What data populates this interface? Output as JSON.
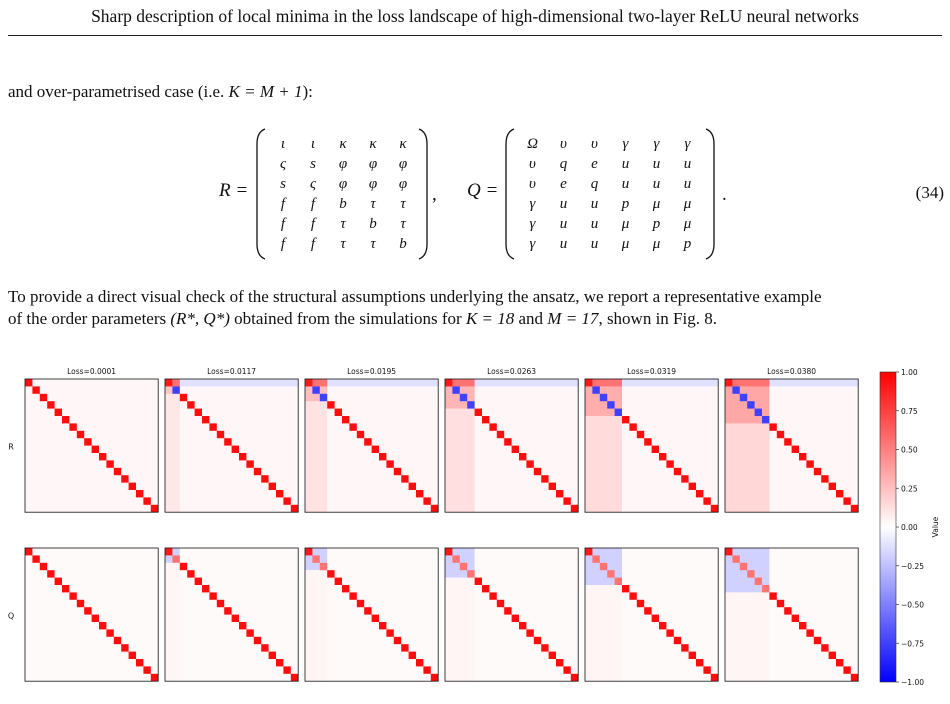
{
  "header": {
    "title": "Sharp description of local minima in the loss landscape of high-dimensional two-layer ReLU neural networks"
  },
  "para1": {
    "prefix": "and over-parametrised case (i.e. ",
    "math": "K = M + 1",
    "suffix": "):"
  },
  "equation": {
    "number": "(34)",
    "R_label": "R =",
    "Q_label": "Q =",
    "sep": ",",
    "end": ".",
    "R": [
      [
        "ι",
        "ι",
        "κ",
        "κ",
        "κ"
      ],
      [
        "ς",
        "s",
        "φ",
        "φ",
        "φ"
      ],
      [
        "s",
        "ς",
        "φ",
        "φ",
        "φ"
      ],
      [
        "f",
        "f",
        "b",
        "τ",
        "τ"
      ],
      [
        "f",
        "f",
        "τ",
        "b",
        "τ"
      ],
      [
        "f",
        "f",
        "τ",
        "τ",
        "b"
      ]
    ],
    "Q": [
      [
        "Ω",
        "υ",
        "υ",
        "γ",
        "γ",
        "γ"
      ],
      [
        "υ",
        "q",
        "e",
        "u",
        "u",
        "u"
      ],
      [
        "υ",
        "e",
        "q",
        "u",
        "u",
        "u"
      ],
      [
        "γ",
        "u",
        "u",
        "p",
        "μ",
        "μ"
      ],
      [
        "γ",
        "u",
        "u",
        "μ",
        "p",
        "μ"
      ],
      [
        "γ",
        "u",
        "u",
        "μ",
        "μ",
        "p"
      ]
    ]
  },
  "para2": {
    "line1": "To provide a direct visual check of the structural assumptions underlying the ansatz, we report a representative example",
    "line2_a": "of the order parameters ",
    "line2_math1": "(R*, Q*)",
    "line2_b": " obtained from the simulations for ",
    "line2_math2": "K = 18",
    "line2_c": " and ",
    "line2_math3": "M = 17",
    "line2_d": ", shown in Fig. 8."
  },
  "figure": {
    "row_labels": [
      "R",
      "Q"
    ],
    "panels": [
      {
        "title": "Loss=0.0001",
        "p": 0
      },
      {
        "title": "Loss=0.0117",
        "p": 1
      },
      {
        "title": "Loss=0.0195",
        "p": 2
      },
      {
        "title": "Loss=0.0263",
        "p": 3
      },
      {
        "title": "Loss=0.0319",
        "p": 4
      },
      {
        "title": "Loss=0.0380",
        "p": 5
      }
    ],
    "colorbar": {
      "label": "Value",
      "ticks": [
        "1.00",
        "0.75",
        "0.50",
        "0.25",
        "0.00",
        "−0.25",
        "−0.50",
        "−0.75",
        "−1.00"
      ],
      "colors": {
        "pos": "#ff0000",
        "neg": "#0000ff",
        "mid": "#ffffff"
      }
    }
  }
}
